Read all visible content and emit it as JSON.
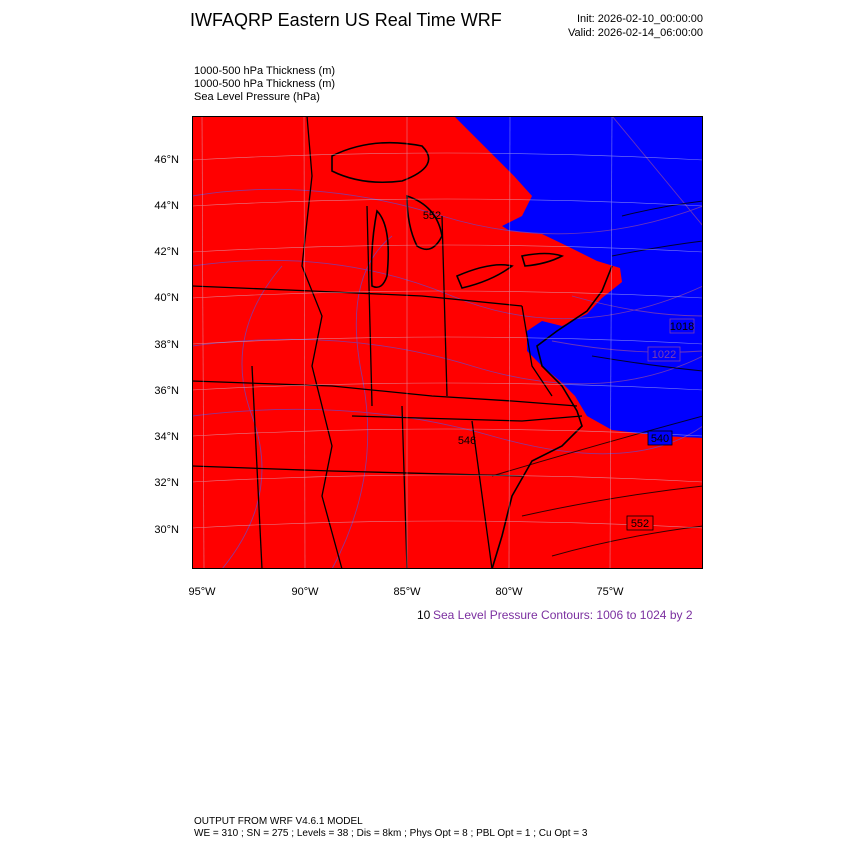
{
  "header": {
    "title": "IWFAQRP Eastern US Real Time WRF",
    "init": "Init: 2026-02-10_00:00:00",
    "valid": "Valid: 2026-02-14_06:00:00"
  },
  "fields": [
    "1000-500 hPa Thickness   (m)",
    "1000-500 hPa Thickness   (m)",
    "Sea Level Pressure   (hPa)"
  ],
  "axes": {
    "lat_labels": [
      "46°N",
      "44°N",
      "42°N",
      "40°N",
      "38°N",
      "36°N",
      "34°N",
      "32°N",
      "30°N"
    ],
    "lon_labels": [
      "95°W",
      "90°W",
      "85°W",
      "80°W",
      "75°W"
    ]
  },
  "colors": {
    "warm_fill": "#ff0000",
    "cold_fill": "#0000ff",
    "boundaries": "#000000",
    "slp_contours": "#7b3fb0"
  },
  "contour_labels": {
    "thickness": [
      "552",
      "546",
      "540",
      "552"
    ],
    "slp": [
      "1022",
      "1018"
    ]
  },
  "contour_info": {
    "lead": "10",
    "text": "Sea Level Pressure Contours: 1006 to 1024 by 2"
  },
  "footer": {
    "line1": "OUTPUT FROM WRF V4.6.1 MODEL",
    "line2": "WE = 310 ; SN = 275 ; Levels = 38 ; Dis = 8km ; Phys Opt = 8 ; PBL Opt = 1 ; Cu Opt = 3"
  }
}
